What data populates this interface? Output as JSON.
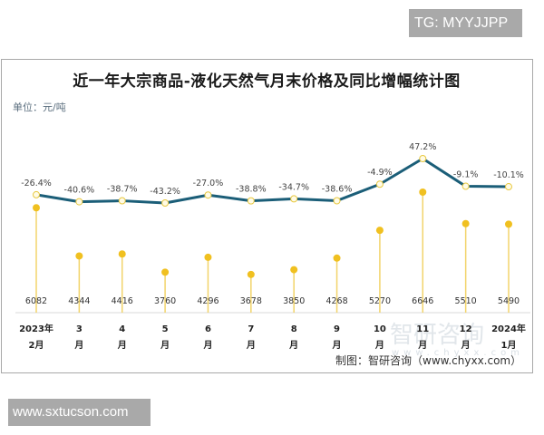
{
  "watermarks": {
    "top": "TG: MYYJJPP",
    "bottom": "www.sxtucson.com",
    "logo": "智研咨询",
    "logo_url": "www.chyxx.com"
  },
  "header": {
    "title": "近一年大宗商品-液化天然气月末价格及同比增幅统计图",
    "unit": "单位：元/吨"
  },
  "footer": {
    "source": "制图：智研咨询（www.chyxx.com）"
  },
  "colors": {
    "line": "#1b5e78",
    "line_marker_fill": "#fffbe6",
    "line_marker_stroke": "#e8c840",
    "lollipop": "#f0c020",
    "stem": "#f2d46a",
    "axis": "#d9d9d9"
  },
  "chart_data": {
    "type": "line+lollipop",
    "title": "近一年大宗商品-液化天然气月末价格及同比增幅统计图",
    "unit": "元/吨",
    "categories": [
      "2023年2月",
      "3月",
      "4月",
      "5月",
      "6月",
      "7月",
      "8月",
      "9月",
      "10月",
      "11月",
      "12月",
      "2024年1月"
    ],
    "category_lines": [
      [
        "2023年",
        "2月"
      ],
      [
        "3",
        "月"
      ],
      [
        "4",
        "月"
      ],
      [
        "5",
        "月"
      ],
      [
        "6",
        "月"
      ],
      [
        "7",
        "月"
      ],
      [
        "8",
        "月"
      ],
      [
        "9",
        "月"
      ],
      [
        "10",
        "月"
      ],
      [
        "11",
        "月"
      ],
      [
        "12",
        "月"
      ],
      [
        "2024年",
        "1月"
      ]
    ],
    "series": [
      {
        "name": "月末价格（元/吨）",
        "type": "lollipop",
        "values": [
          6082,
          4344,
          4416,
          3760,
          4296,
          3678,
          3850,
          4268,
          5270,
          6646,
          5510,
          5490
        ]
      },
      {
        "name": "同比增幅",
        "type": "line",
        "values": [
          -26.4,
          -40.6,
          -38.7,
          -43.2,
          -27.0,
          -38.8,
          -34.7,
          -38.6,
          -4.9,
          47.2,
          -9.1,
          -10.1
        ],
        "labels": [
          "-26.4%",
          "-40.6%",
          "-38.7%",
          "-43.2%",
          "-27.0%",
          "-38.8%",
          "-34.7%",
          "-38.6%",
          "-4.9%",
          "47.2%",
          "-9.1%",
          "-10.1%"
        ]
      }
    ],
    "xlabel": "",
    "ylabel": "",
    "grid": false,
    "legend": "none"
  }
}
